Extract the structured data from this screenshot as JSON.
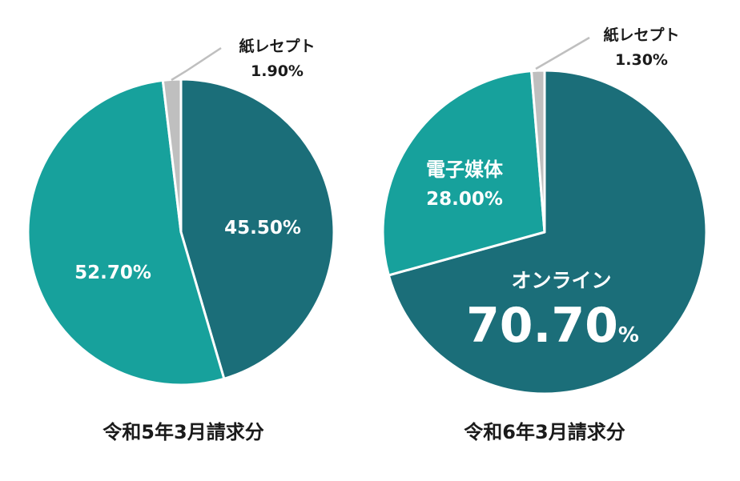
{
  "colors": {
    "online": "#1b6e79",
    "electronic": "#17a19c",
    "paper": "#bfbfbf",
    "text_dark": "#1a1a1a",
    "text_light": "#ffffff"
  },
  "chart_data": [
    {
      "type": "pie",
      "title": "令和5年3月請求分",
      "slices": [
        {
          "key": "online",
          "name": "",
          "value": 45.5,
          "label": "45.50%"
        },
        {
          "key": "electronic",
          "name": "",
          "value": 52.7,
          "label": "52.70%"
        },
        {
          "key": "paper",
          "name": "紙レセプト",
          "value": 1.9,
          "label": "1.90%"
        }
      ],
      "start": "12 o'clock",
      "direction": "clockwise"
    },
    {
      "type": "pie",
      "title": "令和6年3月請求分",
      "slices": [
        {
          "key": "online",
          "name": "オンライン",
          "value": 70.7,
          "label": "70.70",
          "unit": "%"
        },
        {
          "key": "electronic",
          "name": "電子媒体",
          "value": 28.0,
          "label": "28.00%"
        },
        {
          "key": "paper",
          "name": "紙レセプト",
          "value": 1.3,
          "label": "1.30%"
        }
      ],
      "start": "12 o'clock",
      "direction": "clockwise"
    }
  ]
}
